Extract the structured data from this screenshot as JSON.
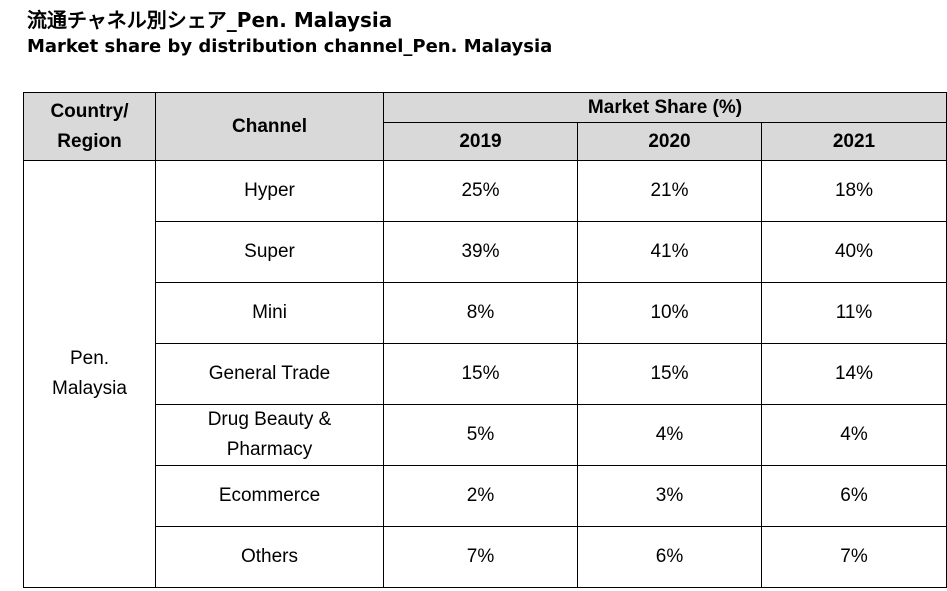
{
  "title_ja": "流通チャネル別シェア_Pen. Malaysia",
  "title_en": "Market share by distribution channel_Pen. Malaysia",
  "table": {
    "header_region": "Country/\nRegion",
    "header_channel": "Channel",
    "header_market_share": "Market Share (%)",
    "years": [
      "2019",
      "2020",
      "2021"
    ],
    "region": "Pen.\nMalaysia",
    "rows": [
      {
        "channel": "Hyper",
        "values": [
          "25%",
          "21%",
          "18%"
        ]
      },
      {
        "channel": "Super",
        "values": [
          "39%",
          "41%",
          "40%"
        ]
      },
      {
        "channel": "Mini",
        "values": [
          "8%",
          "10%",
          "11%"
        ]
      },
      {
        "channel": "General Trade",
        "values": [
          "15%",
          "15%",
          "14%"
        ]
      },
      {
        "channel": "Drug Beauty &\nPharmacy",
        "values": [
          "5%",
          "4%",
          "4%"
        ]
      },
      {
        "channel": "Ecommerce",
        "values": [
          "2%",
          "3%",
          "6%"
        ]
      },
      {
        "channel": "Others",
        "values": [
          "7%",
          "6%",
          "7%"
        ]
      }
    ]
  }
}
